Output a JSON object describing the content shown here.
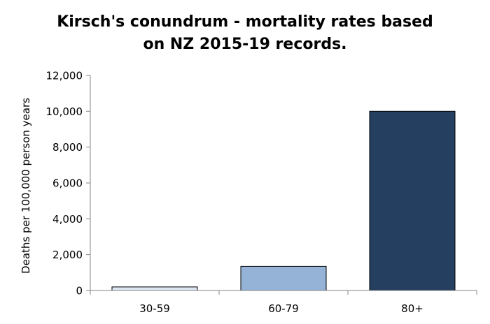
{
  "chart_data": {
    "type": "bar",
    "title_lines": [
      "Kirsch's conundrum - mortality rates based",
      "on NZ 2015-19 records."
    ],
    "xlabel": "",
    "ylabel": "Deaths per 100,000 person years",
    "categories": [
      "30-59",
      "60-79",
      "80+"
    ],
    "values": [
      200,
      1350,
      10000
    ],
    "ylim": [
      0,
      12000
    ],
    "yticks": [
      0,
      2000,
      4000,
      6000,
      8000,
      10000,
      12000
    ],
    "ytick_labels": [
      "0",
      "2,000",
      "4,000",
      "6,000",
      "8,000",
      "10,000",
      "12,000"
    ],
    "grid": false,
    "legend": "none",
    "bar_colors": [
      "#dce6f2",
      "#95b3d7",
      "#243f60"
    ],
    "bar_outline_color": "#000000",
    "axis_color": "#868686"
  }
}
